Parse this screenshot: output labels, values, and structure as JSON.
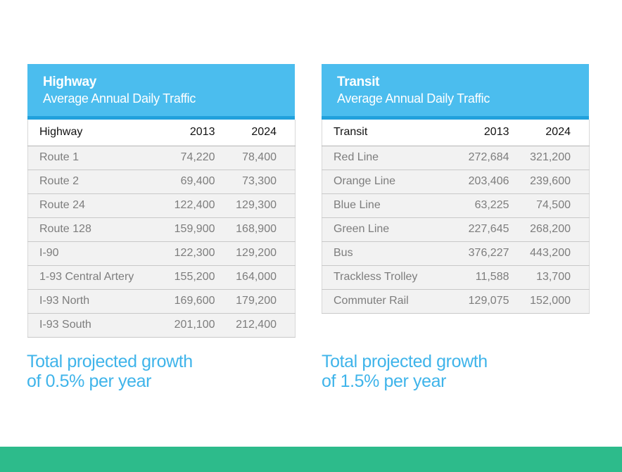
{
  "highway": {
    "title": "Highway",
    "subtitle": "Average Annual Daily Traffic",
    "columns": [
      "Highway",
      "2013",
      "2024"
    ],
    "rows": [
      [
        "Route 1",
        "74,220",
        "78,400"
      ],
      [
        "Route 2",
        "69,400",
        "73,300"
      ],
      [
        "Route 24",
        "122,400",
        "129,300"
      ],
      [
        "Route 128",
        "159,900",
        "168,900"
      ],
      [
        "I-90",
        "122,300",
        "129,200"
      ],
      [
        "1-93 Central Artery",
        "155,200",
        "164,000"
      ],
      [
        "I-93 North",
        "169,600",
        "179,200"
      ],
      [
        "I-93 South",
        "201,100",
        "212,400"
      ]
    ],
    "growth_line1": "Total projected growth",
    "growth_line2": "of 0.5% per year"
  },
  "transit": {
    "title": "Transit",
    "subtitle": "Average Annual Daily Traffic",
    "columns": [
      "Transit",
      "2013",
      "2024"
    ],
    "rows": [
      [
        "Red Line",
        "272,684",
        "321,200"
      ],
      [
        "Orange Line",
        "203,406",
        "239,600"
      ],
      [
        "Blue Line",
        "63,225",
        "74,500"
      ],
      [
        "Green Line",
        "227,645",
        "268,200"
      ],
      [
        "Bus",
        "376,227",
        "443,200"
      ],
      [
        "Trackless Trolley",
        "11,588",
        "13,700"
      ],
      [
        "Commuter Rail",
        "129,075",
        "152,000"
      ]
    ],
    "growth_line1": "Total projected growth",
    "growth_line2": "of 1.5% per year"
  },
  "colors": {
    "header_bg": "#4bbdee",
    "header_accent": "#21a1dc",
    "growth_text": "#3fb4ea",
    "footer_bar": "#2dbb8b"
  }
}
